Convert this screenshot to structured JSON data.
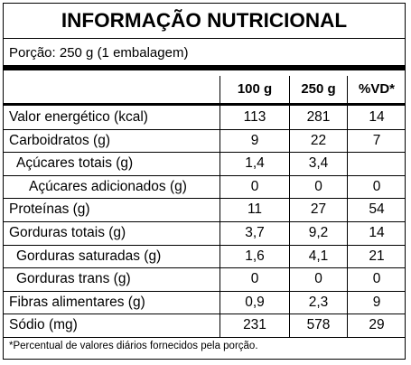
{
  "title": "INFORMAÇÃO NUTRICIONAL",
  "portion": "Porção: 250 g (1 embalagem)",
  "headers": [
    "100 g",
    "250 g",
    "%VD*"
  ],
  "rows": [
    {
      "label": "Valor energético (kcal)",
      "indent": 0,
      "v100": "113",
      "v250": "281",
      "vd": "14"
    },
    {
      "label": "Carboidratos (g)",
      "indent": 0,
      "v100": "9",
      "v250": "22",
      "vd": "7"
    },
    {
      "label": "Açúcares totais (g)",
      "indent": 1,
      "v100": "1,4",
      "v250": "3,4",
      "vd": ""
    },
    {
      "label": "Açúcares adicionados (g)",
      "indent": 2,
      "v100": "0",
      "v250": "0",
      "vd": "0"
    },
    {
      "label": "Proteínas (g)",
      "indent": 0,
      "v100": "11",
      "v250": "27",
      "vd": "54"
    },
    {
      "label": "Gorduras totais (g)",
      "indent": 0,
      "v100": "3,7",
      "v250": "9,2",
      "vd": "14"
    },
    {
      "label": "Gorduras saturadas (g)",
      "indent": 1,
      "v100": "1,6",
      "v250": "4,1",
      "vd": "21"
    },
    {
      "label": "Gorduras trans (g)",
      "indent": 1,
      "v100": "0",
      "v250": "0",
      "vd": "0"
    },
    {
      "label": "Fibras alimentares (g)",
      "indent": 0,
      "v100": "0,9",
      "v250": "2,3",
      "vd": "9"
    },
    {
      "label": "Sódio (mg)",
      "indent": 0,
      "v100": "231",
      "v250": "578",
      "vd": "29"
    }
  ],
  "footnote": "*Percentual de valores diários fornecidos pela porção."
}
